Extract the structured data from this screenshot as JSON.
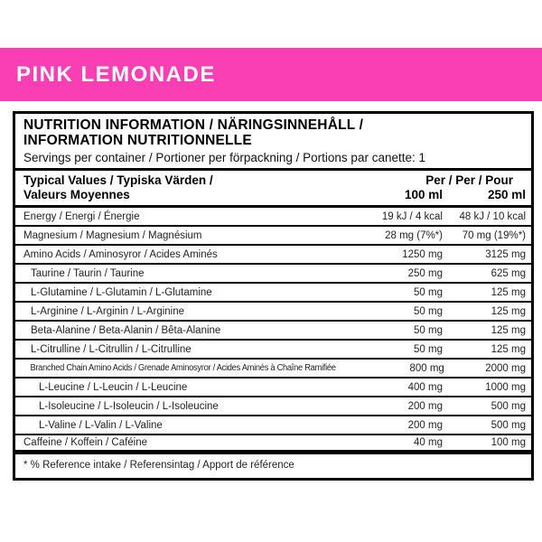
{
  "colors": {
    "flavor_bg": "#fa3eb3",
    "flavor_fg": "#ffffff",
    "panel_border": "#000000"
  },
  "flavor_banner": {
    "title": "PINK LEMONADE"
  },
  "panel": {
    "title_lines": [
      "NUTRITION INFORMATION / NÄRINGSINNEHÅLL /",
      "INFORMATION NUTRITIONNELLE"
    ],
    "servings": "Servings per container / Portioner per förpackning / Portions par canette: 1",
    "columns": {
      "label_lines": [
        "Typical Values / Typiska Värden /",
        "Valeurs Moyennes"
      ],
      "per_header": "Per / Per / Pour",
      "col1": "100 ml",
      "col2": "250 ml"
    },
    "rows": [
      {
        "label": "Energy / Energi / Énergie",
        "indent": 0,
        "per100": "19 kJ / 4 kcal",
        "per250": "48 kJ / 10 kcal"
      },
      {
        "label": "Magnesium / Magnesium / Magnésium",
        "indent": 0,
        "per100": "28 mg (7%*)",
        "per250": "70 mg (19%*)"
      },
      {
        "label": "Amino Acids / Aminosyror / Acides Aminés",
        "indent": 0,
        "per100": "1250 mg",
        "per250": "3125 mg"
      },
      {
        "label": "Taurine / Taurin / Taurine",
        "indent": 1,
        "per100": "250 mg",
        "per250": "625 mg"
      },
      {
        "label": "L-Glutamine / L-Glutamin / L-Glutamine",
        "indent": 1,
        "per100": "50 mg",
        "per250": "125 mg"
      },
      {
        "label": "L-Arginine / L-Arginin / L-Arginine",
        "indent": 1,
        "per100": "50 mg",
        "per250": "125 mg"
      },
      {
        "label": "Beta-Alanine / Beta-Alanin / Bêta-Alanine",
        "indent": 1,
        "per100": "50 mg",
        "per250": "125 mg"
      },
      {
        "label": "L-Citrulline / L-Citrullin / L-Citrulline",
        "indent": 1,
        "per100": "50 mg",
        "per250": "125 mg"
      },
      {
        "label": "Branched Chain Amino Acids / Grenade Aminosyror / Acides Aminés à Chaîne Ramifiée",
        "indent": 1,
        "condensed": true,
        "per100": "800 mg",
        "per250": "2000 mg"
      },
      {
        "label": "L-Leucine / L-Leucin / L-Leucine",
        "indent": 2,
        "per100": "400 mg",
        "per250": "1000 mg"
      },
      {
        "label": "L-Isoleucine / L-Isoleucin / L-Isoleucine",
        "indent": 2,
        "per100": "200 mg",
        "per250": "500 mg"
      },
      {
        "label": "L-Valine / L-Valin / L-Valine",
        "indent": 2,
        "per100": "200 mg",
        "per250": "500 mg"
      },
      {
        "label": "Caffeine / Koffein / Caféine",
        "indent": 0,
        "per100": "40 mg",
        "per250": "100 mg"
      }
    ],
    "footnote": "* % Reference intake / Referensintag / Apport de référence"
  }
}
